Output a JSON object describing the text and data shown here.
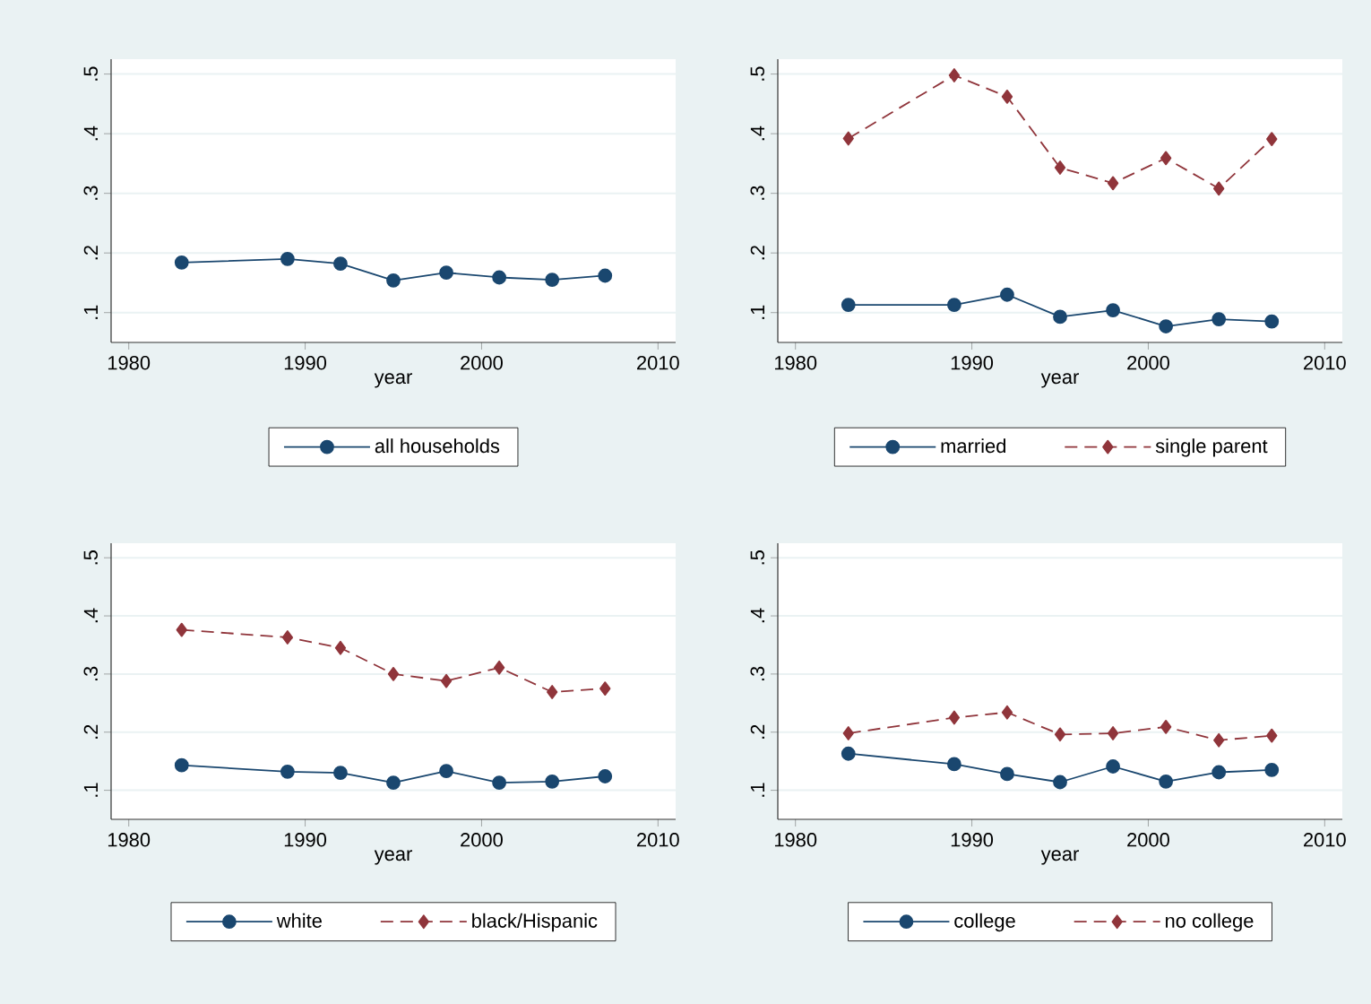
{
  "chart_data": [
    {
      "type": "line",
      "xlabel": "year",
      "x": [
        1983,
        1989,
        1992,
        1995,
        1998,
        2001,
        2004,
        2007
      ],
      "xlim": [
        1979,
        2011
      ],
      "ylim": [
        0.05,
        0.525
      ],
      "xticks": [
        1980,
        1990,
        2000,
        2010
      ],
      "yticks": [
        {
          "value": 0.1,
          "label": ".1"
        },
        {
          "value": 0.2,
          "label": ".2"
        },
        {
          "value": 0.3,
          "label": ".3"
        },
        {
          "value": 0.4,
          "label": ".4"
        },
        {
          "value": 0.5,
          "label": ".5"
        }
      ],
      "grid": "y",
      "legend": "bottom",
      "series": [
        {
          "name": "all households",
          "color": "#1a476f",
          "marker": "circle",
          "line_style": "solid",
          "values": [
            0.184,
            0.19,
            0.182,
            0.154,
            0.167,
            0.159,
            0.155,
            0.162
          ]
        }
      ]
    },
    {
      "type": "line",
      "xlabel": "year",
      "x": [
        1983,
        1989,
        1992,
        1995,
        1998,
        2001,
        2004,
        2007
      ],
      "xlim": [
        1979,
        2011
      ],
      "ylim": [
        0.05,
        0.525
      ],
      "xticks": [
        1980,
        1990,
        2000,
        2010
      ],
      "yticks": [
        {
          "value": 0.1,
          "label": ".1"
        },
        {
          "value": 0.2,
          "label": ".2"
        },
        {
          "value": 0.3,
          "label": ".3"
        },
        {
          "value": 0.4,
          "label": ".4"
        },
        {
          "value": 0.5,
          "label": ".5"
        }
      ],
      "grid": "y",
      "legend": "bottom",
      "series": [
        {
          "name": "married",
          "color": "#1a476f",
          "marker": "circle",
          "line_style": "solid",
          "values": [
            0.113,
            0.113,
            0.13,
            0.093,
            0.104,
            0.077,
            0.089,
            0.085
          ]
        },
        {
          "name": "single parent",
          "color": "#90353b",
          "marker": "diamond",
          "line_style": "dashed",
          "values": [
            0.392,
            0.498,
            0.462,
            0.343,
            0.317,
            0.359,
            0.308,
            0.391
          ]
        }
      ]
    },
    {
      "type": "line",
      "xlabel": "year",
      "x": [
        1983,
        1989,
        1992,
        1995,
        1998,
        2001,
        2004,
        2007
      ],
      "xlim": [
        1979,
        2011
      ],
      "ylim": [
        0.05,
        0.525
      ],
      "xticks": [
        1980,
        1990,
        2000,
        2010
      ],
      "yticks": [
        {
          "value": 0.1,
          "label": ".1"
        },
        {
          "value": 0.2,
          "label": ".2"
        },
        {
          "value": 0.3,
          "label": ".3"
        },
        {
          "value": 0.4,
          "label": ".4"
        },
        {
          "value": 0.5,
          "label": ".5"
        }
      ],
      "grid": "y",
      "legend": "bottom",
      "series": [
        {
          "name": "white",
          "color": "#1a476f",
          "marker": "circle",
          "line_style": "solid",
          "values": [
            0.143,
            0.132,
            0.13,
            0.113,
            0.133,
            0.113,
            0.115,
            0.124
          ]
        },
        {
          "name": "black/Hispanic",
          "color": "#90353b",
          "marker": "diamond",
          "line_style": "dashed",
          "values": [
            0.376,
            0.363,
            0.345,
            0.3,
            0.288,
            0.311,
            0.269,
            0.275
          ]
        }
      ]
    },
    {
      "type": "line",
      "xlabel": "year",
      "x": [
        1983,
        1989,
        1992,
        1995,
        1998,
        2001,
        2004,
        2007
      ],
      "xlim": [
        1979,
        2011
      ],
      "ylim": [
        0.05,
        0.525
      ],
      "xticks": [
        1980,
        1990,
        2000,
        2010
      ],
      "yticks": [
        {
          "value": 0.1,
          "label": ".1"
        },
        {
          "value": 0.2,
          "label": ".2"
        },
        {
          "value": 0.3,
          "label": ".3"
        },
        {
          "value": 0.4,
          "label": ".4"
        },
        {
          "value": 0.5,
          "label": ".5"
        }
      ],
      "grid": "y",
      "legend": "bottom",
      "series": [
        {
          "name": "college",
          "color": "#1a476f",
          "marker": "circle",
          "line_style": "solid",
          "values": [
            0.163,
            0.145,
            0.128,
            0.114,
            0.141,
            0.115,
            0.131,
            0.135
          ]
        },
        {
          "name": "no college",
          "color": "#90353b",
          "marker": "diamond",
          "line_style": "dashed",
          "values": [
            0.198,
            0.225,
            0.234,
            0.196,
            0.198,
            0.209,
            0.186,
            0.194
          ]
        }
      ]
    }
  ]
}
